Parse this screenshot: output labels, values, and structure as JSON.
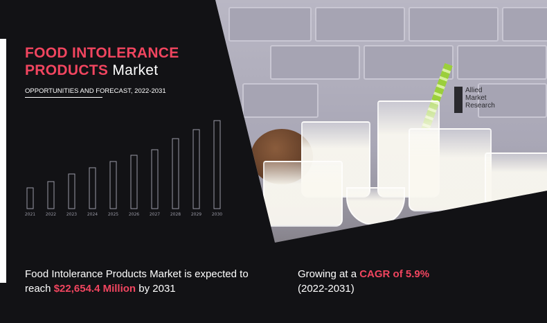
{
  "header": {
    "title_highlight_line1": "FOOD INTOLERANCE",
    "title_highlight_line2": "PRODUCTS",
    "title_plain": "Market",
    "subtitle": "OPPORTUNITIES AND FORECAST, 2022-2031"
  },
  "logo": {
    "line1": "Allied",
    "line2": "Market",
    "line3": "Research"
  },
  "colors": {
    "accent": "#f1455f",
    "background": "#121215",
    "bar_outline": "#9a9aa6"
  },
  "chart_data": {
    "type": "bar",
    "title": "",
    "xlabel": "",
    "ylabel": "",
    "categories": [
      "2021",
      "2022",
      "2023",
      "2024",
      "2025",
      "2026",
      "2027",
      "2028",
      "2029",
      "2030"
    ],
    "values": [
      30,
      39,
      50,
      59,
      68,
      77,
      85,
      101,
      114,
      127
    ],
    "grid": false,
    "style": "outlined bars, no y-axis, relative heights"
  },
  "footer": {
    "left_prefix": "Food Intolerance Products Market is expected to reach ",
    "left_value": "$22,654.4 Million",
    "left_suffix": " by 2031",
    "right_prefix": "Growing at a ",
    "right_value": "CAGR of 5.9%",
    "right_period": "(2022-2031)"
  }
}
